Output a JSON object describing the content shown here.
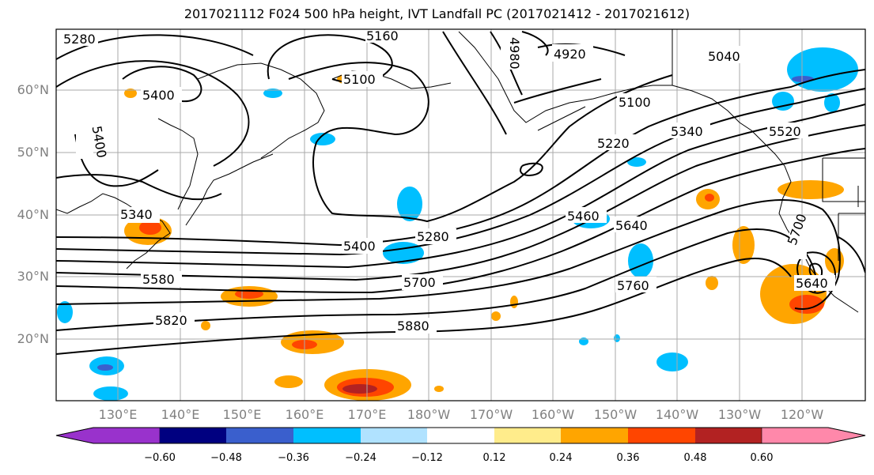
{
  "title": "2017021112 F024 500 hPa height, IVT Landfall PC (2017021412 - 2017021612)",
  "lat_labels": [
    "60°N",
    "50°N",
    "40°N",
    "30°N",
    "20°N"
  ],
  "lon_labels": [
    "130°E",
    "140°E",
    "150°E",
    "160°E",
    "170°E",
    "180°W",
    "170°W",
    "160°W",
    "150°W",
    "140°W",
    "130°W",
    "120°W"
  ],
  "contour_labels": [
    "5280",
    "5160",
    "4920",
    "4980",
    "5040",
    "5400",
    "5100",
    "5400",
    "5100",
    "5220",
    "5340",
    "5520",
    "5340",
    "5460",
    "5640",
    "5700",
    "5400",
    "5280",
    "5580",
    "5700",
    "5760",
    "5640",
    "5820",
    "5880"
  ],
  "colorbar": {
    "ticks": [
      "−0.60",
      "−0.48",
      "−0.36",
      "−0.24",
      "−0.12",
      "0.12",
      "0.24",
      "0.36",
      "0.48",
      "0.60"
    ],
    "colors": [
      "#9932CC",
      "#000080",
      "#3A5FCD",
      "#00BFFF",
      "#B0E2FF",
      "#FFFFFF",
      "#FFEC8B",
      "#FFA500",
      "#FF4500",
      "#B22222",
      "#FF88AA"
    ]
  },
  "colors": {
    "grid": "#aaaaaa",
    "coast": "#000000",
    "contour": "#000000"
  }
}
